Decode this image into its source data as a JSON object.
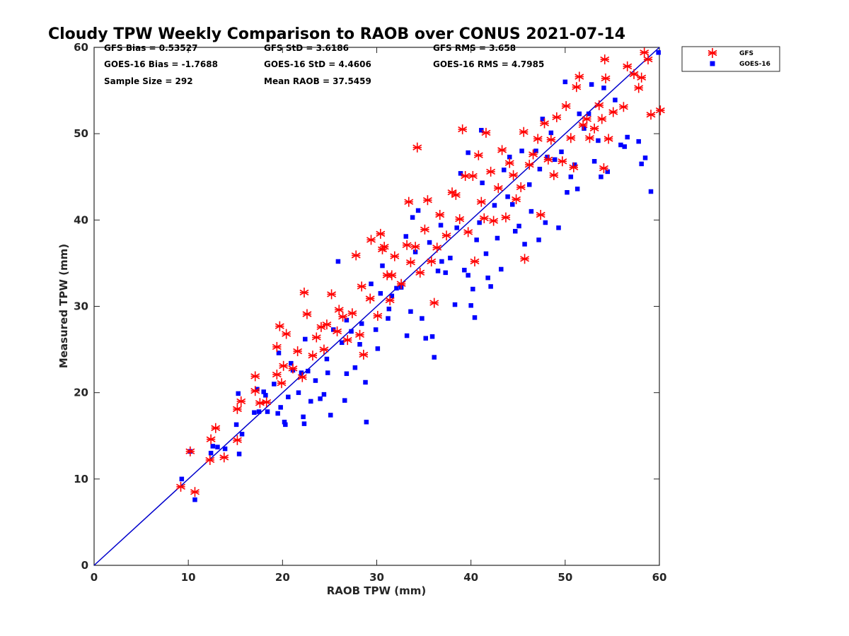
{
  "chart_data": {
    "type": "scatter",
    "title": "Cloudy TPW Weekly Comparison to RAOB over CONUS 2021-07-14",
    "xlabel": "RAOB TPW (mm)",
    "ylabel": "Measured TPW (mm)",
    "xlim": [
      0,
      60
    ],
    "ylim": [
      0,
      60
    ],
    "xticks": [
      "0",
      "10",
      "20",
      "30",
      "40",
      "50",
      "60"
    ],
    "yticks": [
      "0",
      "10",
      "20",
      "30",
      "40",
      "50",
      "60"
    ],
    "grid": false,
    "legend_position": "top-right outside",
    "reference_line": {
      "x": [
        0,
        60
      ],
      "y": [
        0,
        60
      ],
      "color": "#0000cc"
    },
    "stats": {
      "gfs_bias": "GFS Bias = 0.53527",
      "goes_bias": "GOES-16 Bias = -1.7688",
      "sample_size": "Sample Size = 292",
      "gfs_std": "GFS StD = 3.6186",
      "goes_std": "GOES-16 StD = 4.4606",
      "mean_raob": "Mean RAOB = 37.5459",
      "gfs_rms": "GFS RMS = 3.658",
      "goes_rms": "GOES-16 RMS = 4.7985"
    },
    "series": [
      {
        "name": "GFS",
        "marker": "asterisk",
        "color": "#ff0000",
        "points": [
          [
            9.2,
            9.1
          ],
          [
            10.2,
            13.2
          ],
          [
            10.7,
            8.5
          ],
          [
            12.3,
            12.2
          ],
          [
            12.4,
            14.6
          ],
          [
            12.9,
            15.9
          ],
          [
            13.8,
            12.5
          ],
          [
            15.2,
            14.5
          ],
          [
            15.2,
            18.1
          ],
          [
            15.6,
            19.0
          ],
          [
            17.1,
            20.2
          ],
          [
            17.1,
            21.9
          ],
          [
            17.6,
            18.8
          ],
          [
            18.3,
            18.9
          ],
          [
            19.4,
            22.1
          ],
          [
            19.4,
            25.3
          ],
          [
            19.7,
            27.7
          ],
          [
            19.9,
            21.1
          ],
          [
            20.1,
            23.1
          ],
          [
            20.4,
            26.8
          ],
          [
            21.1,
            22.8
          ],
          [
            21.6,
            24.8
          ],
          [
            22.1,
            21.8
          ],
          [
            22.3,
            31.6
          ],
          [
            22.6,
            29.1
          ],
          [
            23.2,
            24.3
          ],
          [
            23.6,
            26.4
          ],
          [
            24.1,
            27.6
          ],
          [
            24.4,
            25.0
          ],
          [
            24.7,
            27.9
          ],
          [
            25.2,
            31.4
          ],
          [
            25.8,
            27.1
          ],
          [
            26.0,
            29.6
          ],
          [
            26.4,
            28.8
          ],
          [
            26.9,
            26.1
          ],
          [
            27.4,
            29.2
          ],
          [
            27.8,
            35.9
          ],
          [
            28.2,
            26.7
          ],
          [
            28.4,
            32.3
          ],
          [
            28.6,
            24.4
          ],
          [
            29.3,
            30.9
          ],
          [
            29.4,
            37.7
          ],
          [
            30.1,
            28.9
          ],
          [
            30.4,
            38.4
          ],
          [
            30.6,
            36.6
          ],
          [
            30.8,
            36.9
          ],
          [
            31.1,
            33.6
          ],
          [
            31.4,
            30.7
          ],
          [
            31.6,
            33.6
          ],
          [
            31.9,
            35.8
          ],
          [
            32.6,
            32.6
          ],
          [
            33.2,
            37.1
          ],
          [
            33.4,
            42.1
          ],
          [
            33.6,
            35.1
          ],
          [
            34.1,
            36.9
          ],
          [
            34.3,
            48.4
          ],
          [
            34.6,
            33.9
          ],
          [
            35.1,
            38.9
          ],
          [
            35.4,
            42.3
          ],
          [
            35.8,
            35.2
          ],
          [
            36.1,
            30.4
          ],
          [
            36.4,
            36.8
          ],
          [
            36.7,
            40.6
          ],
          [
            37.4,
            38.2
          ],
          [
            38.0,
            43.2
          ],
          [
            38.4,
            42.9
          ],
          [
            38.8,
            40.1
          ],
          [
            39.1,
            50.5
          ],
          [
            39.4,
            45.1
          ],
          [
            39.7,
            38.6
          ],
          [
            40.2,
            45.1
          ],
          [
            40.4,
            35.2
          ],
          [
            40.8,
            47.5
          ],
          [
            41.1,
            42.1
          ],
          [
            41.4,
            40.2
          ],
          [
            41.6,
            50.1
          ],
          [
            42.1,
            45.6
          ],
          [
            42.4,
            39.9
          ],
          [
            42.9,
            43.7
          ],
          [
            43.3,
            48.1
          ],
          [
            43.7,
            40.3
          ],
          [
            44.1,
            46.6
          ],
          [
            44.5,
            45.2
          ],
          [
            44.8,
            42.4
          ],
          [
            45.3,
            43.8
          ],
          [
            45.6,
            50.2
          ],
          [
            45.7,
            35.5
          ],
          [
            46.2,
            46.4
          ],
          [
            46.6,
            47.6
          ],
          [
            47.1,
            49.4
          ],
          [
            47.4,
            40.6
          ],
          [
            47.8,
            51.2
          ],
          [
            48.2,
            47.0
          ],
          [
            48.5,
            49.3
          ],
          [
            48.8,
            45.2
          ],
          [
            49.1,
            51.9
          ],
          [
            49.7,
            46.8
          ],
          [
            50.1,
            53.2
          ],
          [
            50.6,
            49.5
          ],
          [
            50.9,
            46.1
          ],
          [
            51.2,
            55.4
          ],
          [
            51.5,
            56.6
          ],
          [
            51.9,
            51.0
          ],
          [
            52.3,
            51.7
          ],
          [
            52.6,
            49.5
          ],
          [
            53.1,
            50.6
          ],
          [
            53.6,
            53.3
          ],
          [
            53.9,
            51.7
          ],
          [
            54.1,
            46.0
          ],
          [
            54.2,
            58.6
          ],
          [
            54.3,
            56.4
          ],
          [
            54.6,
            49.4
          ],
          [
            55.1,
            52.5
          ],
          [
            56.2,
            53.1
          ],
          [
            56.6,
            57.8
          ],
          [
            57.3,
            56.9
          ],
          [
            57.8,
            55.3
          ],
          [
            58.1,
            56.5
          ],
          [
            58.4,
            59.4
          ],
          [
            58.8,
            58.6
          ],
          [
            59.1,
            52.2
          ],
          [
            60.1,
            52.7
          ]
        ]
      },
      {
        "name": "GOES-16",
        "marker": "square",
        "color": "#0000ff",
        "points": [
          [
            9.3,
            10.0
          ],
          [
            10.2,
            13.2
          ],
          [
            10.7,
            7.6
          ],
          [
            12.4,
            13.0
          ],
          [
            12.6,
            13.8
          ],
          [
            13.1,
            13.7
          ],
          [
            13.9,
            13.5
          ],
          [
            15.1,
            16.3
          ],
          [
            15.3,
            19.9
          ],
          [
            15.4,
            12.9
          ],
          [
            15.7,
            15.2
          ],
          [
            17.0,
            17.7
          ],
          [
            17.3,
            20.4
          ],
          [
            17.5,
            17.8
          ],
          [
            18.2,
            19.7
          ],
          [
            18.4,
            17.8
          ],
          [
            19.1,
            21.0
          ],
          [
            19.5,
            17.6
          ],
          [
            19.8,
            18.3
          ],
          [
            20.2,
            16.6
          ],
          [
            20.3,
            16.3
          ],
          [
            20.6,
            19.5
          ],
          [
            21.1,
            22.6
          ],
          [
            21.7,
            20.0
          ],
          [
            22.0,
            22.3
          ],
          [
            22.2,
            17.2
          ],
          [
            22.3,
            16.4
          ],
          [
            22.7,
            22.5
          ],
          [
            23.0,
            19.0
          ],
          [
            23.5,
            21.4
          ],
          [
            24.0,
            19.3
          ],
          [
            24.4,
            19.8
          ],
          [
            24.8,
            22.3
          ],
          [
            25.1,
            17.4
          ],
          [
            25.4,
            27.3
          ],
          [
            25.9,
            35.2
          ],
          [
            26.3,
            25.8
          ],
          [
            26.6,
            19.1
          ],
          [
            26.8,
            22.2
          ],
          [
            27.3,
            27.1
          ],
          [
            27.7,
            22.9
          ],
          [
            28.2,
            25.6
          ],
          [
            28.4,
            28.0
          ],
          [
            28.8,
            21.2
          ],
          [
            28.9,
            16.6
          ],
          [
            29.4,
            32.6
          ],
          [
            29.9,
            27.3
          ],
          [
            30.1,
            25.1
          ],
          [
            30.4,
            31.5
          ],
          [
            30.6,
            34.7
          ],
          [
            31.2,
            28.6
          ],
          [
            31.6,
            31.2
          ],
          [
            32.1,
            32.1
          ],
          [
            32.6,
            32.2
          ],
          [
            33.2,
            26.6
          ],
          [
            33.6,
            29.4
          ],
          [
            33.8,
            40.3
          ],
          [
            34.1,
            36.3
          ],
          [
            34.4,
            41.1
          ],
          [
            34.8,
            28.6
          ],
          [
            35.2,
            26.3
          ],
          [
            35.6,
            37.4
          ],
          [
            35.9,
            26.5
          ],
          [
            36.1,
            24.1
          ],
          [
            36.5,
            34.1
          ],
          [
            36.8,
            39.4
          ],
          [
            37.3,
            33.9
          ],
          [
            37.8,
            35.6
          ],
          [
            38.3,
            30.2
          ],
          [
            38.5,
            39.1
          ],
          [
            38.9,
            45.4
          ],
          [
            39.3,
            34.2
          ],
          [
            39.7,
            33.6
          ],
          [
            40.0,
            30.1
          ],
          [
            40.2,
            32.0
          ],
          [
            40.4,
            28.7
          ],
          [
            40.6,
            37.7
          ],
          [
            40.9,
            39.7
          ],
          [
            41.1,
            50.4
          ],
          [
            41.6,
            36.1
          ],
          [
            41.8,
            33.3
          ],
          [
            42.1,
            32.3
          ],
          [
            42.5,
            41.7
          ],
          [
            42.8,
            37.9
          ],
          [
            43.2,
            34.3
          ],
          [
            43.5,
            45.8
          ],
          [
            44.1,
            47.3
          ],
          [
            44.4,
            41.8
          ],
          [
            44.7,
            38.7
          ],
          [
            45.1,
            39.3
          ],
          [
            45.7,
            37.2
          ],
          [
            46.2,
            44.1
          ],
          [
            46.4,
            41.0
          ],
          [
            46.9,
            48.0
          ],
          [
            47.2,
            37.7
          ],
          [
            47.6,
            51.7
          ],
          [
            47.9,
            39.7
          ],
          [
            48.1,
            47.3
          ],
          [
            48.5,
            50.1
          ],
          [
            48.9,
            47.0
          ],
          [
            49.3,
            39.1
          ],
          [
            49.6,
            47.9
          ],
          [
            50.0,
            56.0
          ],
          [
            50.2,
            43.2
          ],
          [
            50.6,
            45.0
          ],
          [
            51.0,
            46.4
          ],
          [
            51.3,
            43.6
          ],
          [
            51.5,
            52.3
          ],
          [
            52.0,
            50.6
          ],
          [
            52.5,
            52.3
          ],
          [
            52.8,
            55.7
          ],
          [
            53.1,
            46.8
          ],
          [
            53.5,
            49.2
          ],
          [
            53.8,
            45.0
          ],
          [
            54.1,
            55.3
          ],
          [
            54.5,
            45.6
          ],
          [
            55.3,
            53.9
          ],
          [
            55.9,
            48.7
          ],
          [
            56.3,
            48.5
          ],
          [
            56.6,
            49.6
          ],
          [
            57.8,
            49.1
          ],
          [
            58.1,
            46.5
          ],
          [
            58.5,
            47.2
          ],
          [
            59.1,
            43.3
          ],
          [
            59.9,
            59.4
          ],
          [
            41.2,
            44.3
          ],
          [
            39.7,
            47.8
          ],
          [
            43.9,
            42.7
          ],
          [
            45.4,
            48.0
          ],
          [
            47.3,
            45.9
          ],
          [
            36.9,
            35.2
          ],
          [
            33.1,
            38.1
          ],
          [
            31.3,
            29.7
          ],
          [
            26.8,
            28.4
          ],
          [
            24.7,
            23.9
          ],
          [
            22.4,
            26.2
          ],
          [
            20.9,
            23.4
          ],
          [
            19.6,
            24.6
          ],
          [
            18.0,
            20.1
          ]
        ]
      }
    ]
  }
}
